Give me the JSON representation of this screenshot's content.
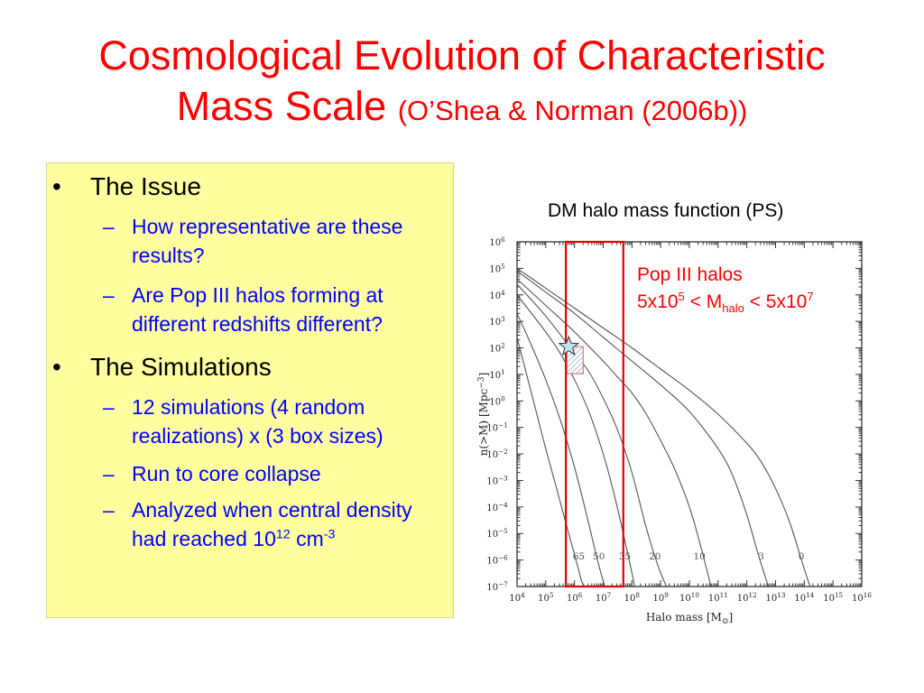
{
  "slide": {
    "title_main": "Cosmological Evolution of Characteristic Mass Scale",
    "title_line1": "Cosmological Evolution of Characteristic",
    "title_line2": "Mass Scale",
    "title_citation": "(O’Shea & Norman (2006b))"
  },
  "bullets": [
    {
      "label": "The Issue",
      "items": [
        {
          "text": "How representative are these results?"
        },
        {
          "text": "Are Pop III halos forming at different redshifts different?"
        }
      ]
    },
    {
      "label": "The Simulations",
      "items": [
        {
          "text": "12 simulations (4 random realizations) x (3 box sizes)"
        },
        {
          "text": "Run to core collapse"
        },
        {
          "text": "Analyzed when central density had reached 10",
          "sup": "12",
          "tail": "cm",
          "tail_sup": "-3"
        }
      ]
    }
  ],
  "colors": {
    "title": "#ff0000",
    "subitem": "#0000ff",
    "panel": "#ffffa0",
    "annotation": "#ff0000",
    "box": "#e00000"
  },
  "chart_caption": "DM halo mass function (PS)",
  "annotation": {
    "line1": "Pop III halos",
    "line2_a": "5x10",
    "line2_a_sup": "5",
    "line2_b": " < M",
    "line2_b_sub": "halo",
    "line2_c": " < 5x10",
    "line2_c_sup": "7"
  },
  "chart_data": {
    "type": "line",
    "log_x": true,
    "log_y": true,
    "xlabel": "Halo  mass  [M",
    "xlabel_sub": "⊙",
    "xlabel_close": "]",
    "ylabel": "n(>M)  [Mpc",
    "ylabel_sup": "−3",
    "ylabel_close": "]",
    "xlim_log10": [
      4,
      16
    ],
    "ylim_log10": [
      -7,
      6
    ],
    "x_ticks": [
      {
        "base": "10",
        "exp": "4"
      },
      {
        "base": "10",
        "exp": "5"
      },
      {
        "base": "10",
        "exp": "6"
      },
      {
        "base": "10",
        "exp": "7"
      },
      {
        "base": "10",
        "exp": "8"
      },
      {
        "base": "10",
        "exp": "9"
      },
      {
        "base": "10",
        "exp": "10"
      },
      {
        "base": "10",
        "exp": "11"
      },
      {
        "base": "10",
        "exp": "12"
      },
      {
        "base": "10",
        "exp": "13"
      },
      {
        "base": "10",
        "exp": "14"
      },
      {
        "base": "10",
        "exp": "15"
      },
      {
        "base": "10",
        "exp": "16"
      }
    ],
    "y_ticks": [
      {
        "base": "10",
        "exp": "6"
      },
      {
        "base": "10",
        "exp": "5"
      },
      {
        "base": "10",
        "exp": "4"
      },
      {
        "base": "10",
        "exp": "3"
      },
      {
        "base": "10",
        "exp": "2"
      },
      {
        "base": "10",
        "exp": "1"
      },
      {
        "base": "10",
        "exp": "0"
      },
      {
        "base": "10",
        "exp": "−1"
      },
      {
        "base": "10",
        "exp": "−2"
      },
      {
        "base": "10",
        "exp": "−3"
      },
      {
        "base": "10",
        "exp": "−4"
      },
      {
        "base": "10",
        "exp": "−5"
      },
      {
        "base": "10",
        "exp": "−6"
      },
      {
        "base": "10",
        "exp": "−7"
      }
    ],
    "series": [
      {
        "name": "65",
        "label_log10M": 6.15,
        "x_log10": [
          4,
          4.5,
          5,
          5.3,
          5.6,
          5.9,
          6.1,
          6.25,
          6.35
        ],
        "y_log10": [
          2.4,
          0.3,
          -1.8,
          -3.0,
          -4.2,
          -5.4,
          -6.2,
          -6.8,
          -7.0
        ]
      },
      {
        "name": "50",
        "label_log10M": 6.85,
        "x_log10": [
          4,
          4.5,
          5,
          5.5,
          6,
          6.4,
          6.8,
          7.05
        ],
        "y_log10": [
          3.3,
          2.1,
          0.8,
          -0.7,
          -2.5,
          -4.2,
          -6.0,
          -7.0
        ]
      },
      {
        "name": "35",
        "label_log10M": 7.75,
        "x_log10": [
          4,
          5,
          5.5,
          6,
          6.5,
          7,
          7.4,
          7.8,
          8.1
        ],
        "y_log10": [
          4.0,
          2.6,
          1.8,
          0.8,
          -0.4,
          -2.0,
          -3.6,
          -5.5,
          -7.0
        ]
      },
      {
        "name": "20",
        "label_log10M": 8.8,
        "x_log10": [
          4,
          5,
          6,
          6.5,
          7,
          7.5,
          8,
          8.5,
          8.9,
          9.2
        ],
        "y_log10": [
          4.4,
          3.2,
          1.8,
          1.1,
          0.1,
          -1.1,
          -2.7,
          -4.8,
          -6.2,
          -7.0
        ]
      },
      {
        "name": "10",
        "label_log10M": 10.35,
        "x_log10": [
          4,
          5,
          6,
          7,
          7.5,
          8,
          8.5,
          9,
          9.5,
          10,
          10.4,
          10.75
        ],
        "y_log10": [
          4.6,
          3.6,
          2.6,
          1.5,
          0.9,
          0.3,
          -0.5,
          -1.5,
          -2.6,
          -4.0,
          -5.5,
          -7.0
        ]
      },
      {
        "name": "3",
        "label_log10M": 12.5,
        "x_log10": [
          4,
          5,
          6,
          7,
          8,
          9,
          10,
          11,
          11.5,
          12,
          12.4,
          12.75
        ],
        "y_log10": [
          4.9,
          4.1,
          3.3,
          2.4,
          1.5,
          0.6,
          -0.4,
          -1.8,
          -2.8,
          -4.3,
          -5.8,
          -7.0
        ]
      },
      {
        "name": "0",
        "label_log10M": 13.9,
        "x_log10": [
          4,
          5,
          6,
          7,
          8,
          9,
          10,
          11,
          12,
          12.5,
          13,
          13.5,
          13.9,
          14.2
        ],
        "y_log10": [
          5.0,
          4.25,
          3.5,
          2.75,
          2.0,
          1.2,
          0.4,
          -0.5,
          -1.6,
          -2.3,
          -3.3,
          -4.6,
          -6.0,
          -7.0
        ]
      }
    ],
    "highlight_box_log10M": [
      5.7,
      7.7
    ],
    "marked_point": {
      "log10M": 5.8,
      "log10n": 2.05
    }
  }
}
